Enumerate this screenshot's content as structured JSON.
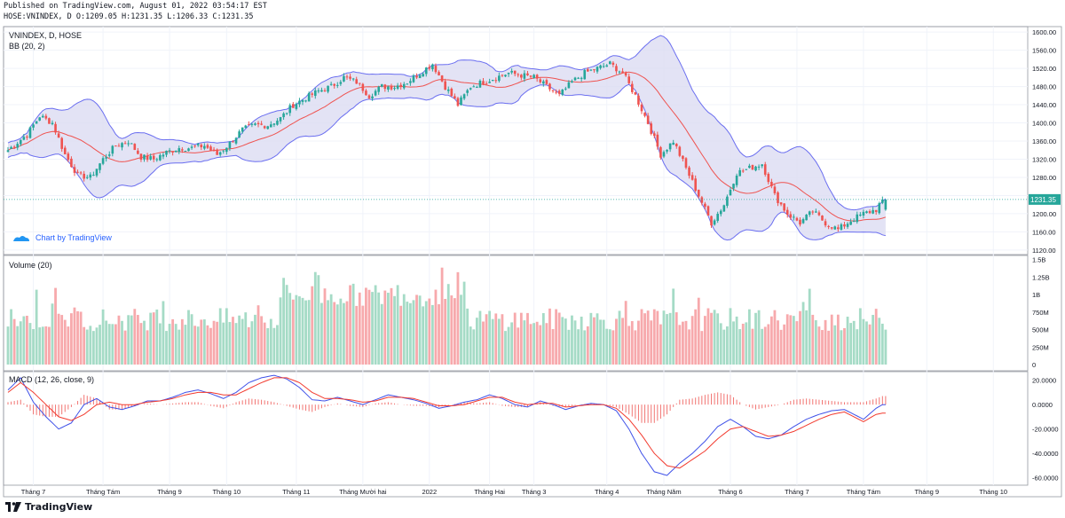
{
  "header": {
    "published": "Published on TradingView.com, August 01, 2022 03:54:17 EST",
    "ohlc": "HOSE:VNINDEX, D O:1209.05 H:1231.35 L:1206.33 C:1231.35"
  },
  "footer": {
    "brand": "TradingView"
  },
  "price_pane": {
    "title": "VNINDEX, D, HOSE",
    "indicator": "BB (20, 2)",
    "watermark": "Chart by TradingView",
    "last_price_label": "1231.35",
    "yticks": [
      1600,
      1560,
      1520,
      1480,
      1440,
      1400,
      1360,
      1320,
      1280,
      1240,
      1200,
      1160,
      1120
    ],
    "ytick_labels": [
      "1600.00",
      "1560.00",
      "1520.00",
      "1480.00",
      "1440.00",
      "1400.00",
      "1360.00",
      "1320.00",
      "1280.00",
      "1240.00",
      "1200.00",
      "1160.00",
      "1120.00"
    ],
    "ylim": [
      1110,
      1612
    ]
  },
  "volume_pane": {
    "title": "Volume (20)",
    "ytick_values": [
      1500000000,
      1250000000,
      1000000000,
      750000000,
      500000000,
      250000000,
      0
    ],
    "ytick_labels": [
      "1.5B",
      "1.25B",
      "1B",
      "750M",
      "500M",
      "250M",
      "0"
    ],
    "ylim": [
      0,
      1560000000
    ]
  },
  "macd_pane": {
    "title": "MACD (12, 26, close, 9)",
    "ytick_values": [
      20,
      0,
      -20,
      -40,
      -60
    ],
    "ytick_labels": [
      "20.0000",
      "0.0000",
      "-20.0000",
      "-40.0000",
      "-60.0000"
    ],
    "ylim": [
      -66,
      27
    ]
  },
  "x_axis": {
    "labels": [
      {
        "text": "Tháng 7",
        "i": 8
      },
      {
        "text": "Tháng Tám",
        "i": 30
      },
      {
        "text": "Tháng 9",
        "i": 51
      },
      {
        "text": "Tháng 10",
        "i": 69
      },
      {
        "text": "Tháng 11",
        "i": 91
      },
      {
        "text": "Tháng Mười hai",
        "i": 112
      },
      {
        "text": "2022",
        "i": 133
      },
      {
        "text": "Tháng Hai",
        "i": 152
      },
      {
        "text": "Tháng 3",
        "i": 166
      },
      {
        "text": "Tháng 4",
        "i": 189
      },
      {
        "text": "Tháng Năm",
        "i": 207
      },
      {
        "text": "Tháng 6",
        "i": 228
      },
      {
        "text": "Tháng 7",
        "i": 249
      },
      {
        "text": "Tháng Tám",
        "i": 270
      },
      {
        "text": "Tháng 9",
        "i": 290
      },
      {
        "text": "Tháng 10",
        "i": 311
      }
    ]
  },
  "colors": {
    "up": "#26a69a",
    "down": "#ef5350",
    "upVol": "#a5dbc6",
    "downVol": "#f7a9ac",
    "bbBand": "#6a6ef0",
    "bbFill": "#dcdcf2",
    "bbBasis": "#ef5350",
    "macd": "#3f51e8",
    "signal": "#f23a2e",
    "grid": "#f0f3fa",
    "axisText": "#131722",
    "lastPrice": "#26a69a"
  },
  "chart_data": {
    "type": "candlestick",
    "symbol": "HOSE:VNINDEX",
    "interval": "D",
    "title": "VNINDEX, D, HOSE",
    "last": {
      "open": 1209.05,
      "high": 1231.35,
      "low": 1206.33,
      "close": 1231.35
    },
    "close_keypoints": [
      [
        0,
        1340
      ],
      [
        6,
        1375
      ],
      [
        10,
        1415
      ],
      [
        14,
        1400
      ],
      [
        18,
        1330
      ],
      [
        22,
        1285
      ],
      [
        26,
        1280
      ],
      [
        30,
        1320
      ],
      [
        34,
        1350
      ],
      [
        38,
        1360
      ],
      [
        42,
        1325
      ],
      [
        46,
        1320
      ],
      [
        50,
        1335
      ],
      [
        54,
        1345
      ],
      [
        58,
        1345
      ],
      [
        62,
        1350
      ],
      [
        66,
        1330
      ],
      [
        70,
        1355
      ],
      [
        74,
        1385
      ],
      [
        78,
        1395
      ],
      [
        82,
        1395
      ],
      [
        86,
        1410
      ],
      [
        90,
        1440
      ],
      [
        94,
        1455
      ],
      [
        98,
        1470
      ],
      [
        102,
        1480
      ],
      [
        106,
        1500
      ],
      [
        110,
        1490
      ],
      [
        114,
        1460
      ],
      [
        118,
        1480
      ],
      [
        122,
        1480
      ],
      [
        126,
        1490
      ],
      [
        130,
        1510
      ],
      [
        134,
        1530
      ],
      [
        138,
        1480
      ],
      [
        142,
        1440
      ],
      [
        146,
        1480
      ],
      [
        150,
        1490
      ],
      [
        154,
        1500
      ],
      [
        158,
        1510
      ],
      [
        162,
        1505
      ],
      [
        166,
        1500
      ],
      [
        170,
        1480
      ],
      [
        174,
        1460
      ],
      [
        178,
        1490
      ],
      [
        182,
        1510
      ],
      [
        186,
        1520
      ],
      [
        190,
        1530
      ],
      [
        194,
        1510
      ],
      [
        198,
        1460
      ],
      [
        202,
        1400
      ],
      [
        206,
        1330
      ],
      [
        210,
        1360
      ],
      [
        214,
        1300
      ],
      [
        218,
        1240
      ],
      [
        222,
        1180
      ],
      [
        226,
        1220
      ],
      [
        230,
        1290
      ],
      [
        234,
        1300
      ],
      [
        238,
        1310
      ],
      [
        242,
        1240
      ],
      [
        246,
        1200
      ],
      [
        250,
        1180
      ],
      [
        254,
        1205
      ],
      [
        258,
        1180
      ],
      [
        262,
        1165
      ],
      [
        266,
        1185
      ],
      [
        270,
        1200
      ],
      [
        274,
        1209
      ],
      [
        276,
        1231.35
      ]
    ],
    "volume_note": "daily volume bars (Volume 20), range 0 to ~1.5B",
    "macd_keypoints": [
      [
        0,
        12
      ],
      [
        4,
        22
      ],
      [
        8,
        2
      ],
      [
        12,
        -10
      ],
      [
        16,
        -20
      ],
      [
        20,
        -15
      ],
      [
        24,
        0
      ],
      [
        28,
        5
      ],
      [
        32,
        -2
      ],
      [
        36,
        -4
      ],
      [
        40,
        -1
      ],
      [
        44,
        3
      ],
      [
        48,
        3
      ],
      [
        52,
        6
      ],
      [
        56,
        10
      ],
      [
        60,
        12
      ],
      [
        64,
        9
      ],
      [
        68,
        5
      ],
      [
        72,
        10
      ],
      [
        76,
        18
      ],
      [
        80,
        22
      ],
      [
        84,
        24
      ],
      [
        88,
        21
      ],
      [
        92,
        14
      ],
      [
        96,
        4
      ],
      [
        100,
        3
      ],
      [
        104,
        6
      ],
      [
        108,
        3
      ],
      [
        112,
        0
      ],
      [
        116,
        4
      ],
      [
        120,
        8
      ],
      [
        124,
        6
      ],
      [
        128,
        4
      ],
      [
        132,
        1
      ],
      [
        136,
        -3
      ],
      [
        140,
        -1
      ],
      [
        144,
        2
      ],
      [
        148,
        4
      ],
      [
        152,
        8
      ],
      [
        156,
        5
      ],
      [
        160,
        0
      ],
      [
        164,
        -2
      ],
      [
        168,
        3
      ],
      [
        172,
        0
      ],
      [
        176,
        -4
      ],
      [
        180,
        -1
      ],
      [
        184,
        1
      ],
      [
        188,
        0
      ],
      [
        192,
        -5
      ],
      [
        196,
        -20
      ],
      [
        200,
        -40
      ],
      [
        204,
        -55
      ],
      [
        208,
        -58
      ],
      [
        212,
        -48
      ],
      [
        216,
        -40
      ],
      [
        220,
        -30
      ],
      [
        224,
        -18
      ],
      [
        228,
        -12
      ],
      [
        232,
        -18
      ],
      [
        236,
        -26
      ],
      [
        240,
        -28
      ],
      [
        244,
        -25
      ],
      [
        248,
        -18
      ],
      [
        252,
        -12
      ],
      [
        256,
        -8
      ],
      [
        260,
        -5
      ],
      [
        264,
        -4
      ],
      [
        270,
        -12
      ],
      [
        274,
        -3
      ],
      [
        276,
        0
      ]
    ],
    "signal_keypoints": [
      [
        0,
        10
      ],
      [
        4,
        18
      ],
      [
        8,
        10
      ],
      [
        12,
        0
      ],
      [
        16,
        -10
      ],
      [
        20,
        -13
      ],
      [
        24,
        -8
      ],
      [
        28,
        0
      ],
      [
        32,
        2
      ],
      [
        36,
        0
      ],
      [
        40,
        0
      ],
      [
        44,
        2
      ],
      [
        48,
        3
      ],
      [
        52,
        5
      ],
      [
        56,
        8
      ],
      [
        60,
        10
      ],
      [
        64,
        10
      ],
      [
        68,
        8
      ],
      [
        72,
        8
      ],
      [
        76,
        13
      ],
      [
        80,
        18
      ],
      [
        84,
        22
      ],
      [
        88,
        22
      ],
      [
        92,
        18
      ],
      [
        96,
        10
      ],
      [
        100,
        5
      ],
      [
        104,
        5
      ],
      [
        108,
        4
      ],
      [
        112,
        2
      ],
      [
        116,
        3
      ],
      [
        120,
        6
      ],
      [
        124,
        6
      ],
      [
        128,
        5
      ],
      [
        132,
        2
      ],
      [
        136,
        -1
      ],
      [
        140,
        -1
      ],
      [
        144,
        0
      ],
      [
        148,
        3
      ],
      [
        152,
        6
      ],
      [
        156,
        6
      ],
      [
        160,
        2
      ],
      [
        164,
        0
      ],
      [
        168,
        1
      ],
      [
        172,
        1
      ],
      [
        176,
        -2
      ],
      [
        180,
        -1
      ],
      [
        184,
        0
      ],
      [
        188,
        0
      ],
      [
        192,
        -3
      ],
      [
        196,
        -12
      ],
      [
        200,
        -25
      ],
      [
        204,
        -40
      ],
      [
        208,
        -50
      ],
      [
        212,
        -52
      ],
      [
        216,
        -45
      ],
      [
        220,
        -38
      ],
      [
        224,
        -28
      ],
      [
        228,
        -20
      ],
      [
        232,
        -18
      ],
      [
        236,
        -22
      ],
      [
        240,
        -26
      ],
      [
        244,
        -25
      ],
      [
        248,
        -22
      ],
      [
        252,
        -17
      ],
      [
        256,
        -12
      ],
      [
        260,
        -8
      ],
      [
        264,
        -6
      ],
      [
        270,
        -14
      ],
      [
        274,
        -8
      ],
      [
        276,
        -7
      ]
    ]
  }
}
